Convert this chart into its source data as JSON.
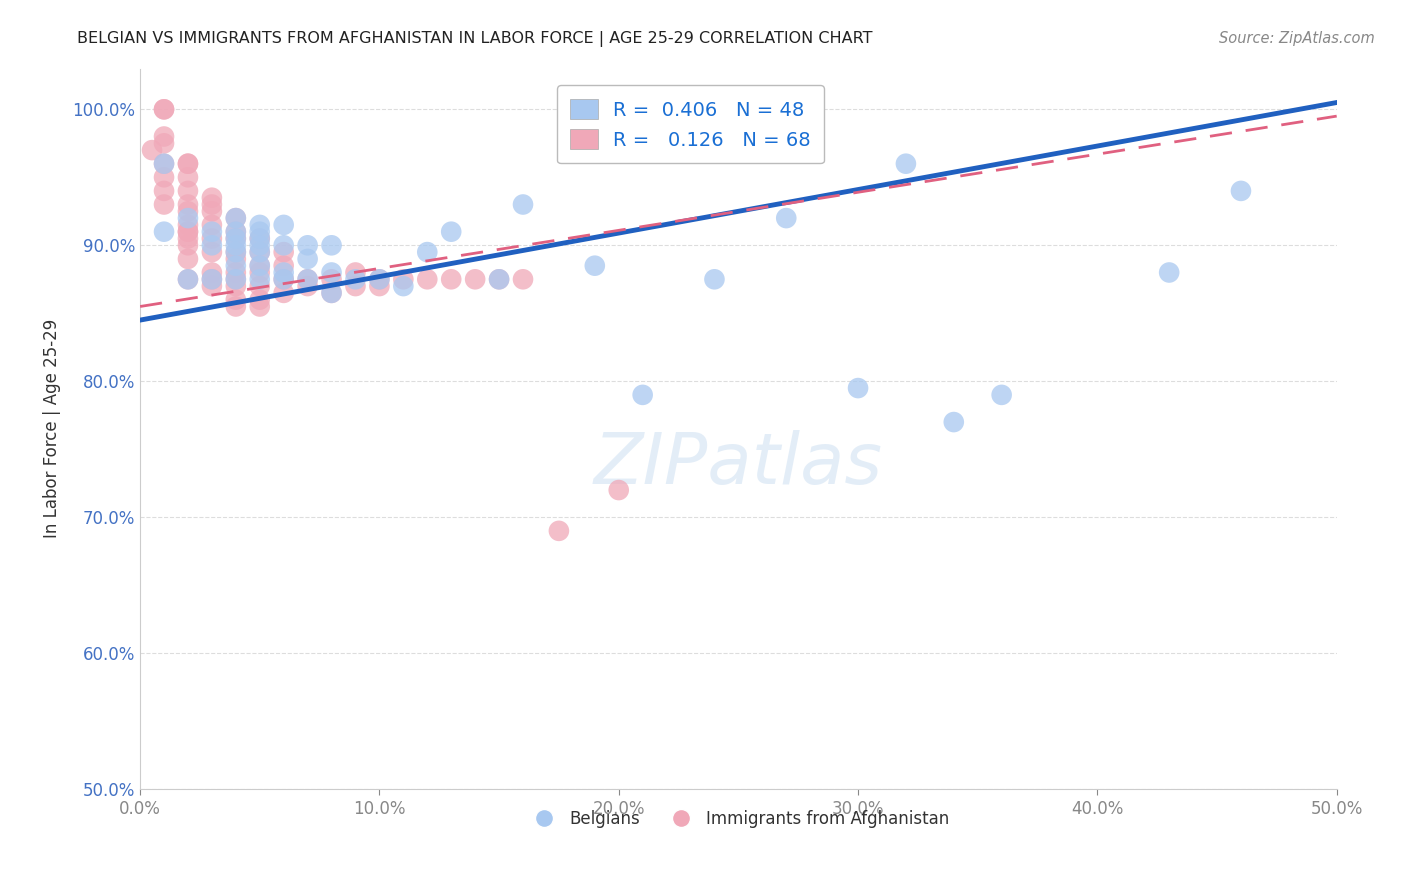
{
  "title": "BELGIAN VS IMMIGRANTS FROM AFGHANISTAN IN LABOR FORCE | AGE 25-29 CORRELATION CHART",
  "source": "Source: ZipAtlas.com",
  "ylabel": "In Labor Force | Age 25-29",
  "xlabel": "",
  "xlim": [
    0.0,
    0.5
  ],
  "ylim": [
    0.5,
    1.03
  ],
  "xtick_vals": [
    0.0,
    0.1,
    0.2,
    0.3,
    0.4,
    0.5
  ],
  "ytick_vals": [
    0.5,
    0.6,
    0.7,
    0.8,
    0.9,
    1.0
  ],
  "legend_r_blue": "0.406",
  "legend_n_blue": "48",
  "legend_r_pink": "0.126",
  "legend_n_pink": "68",
  "blue_color": "#A8C8F0",
  "pink_color": "#F0A8B8",
  "blue_line_color": "#2060C0",
  "pink_line_color": "#E06080",
  "grid_color": "#DDDDDD",
  "blue_trend_x0": 0.0,
  "blue_trend_y0": 0.845,
  "blue_trend_x1": 0.5,
  "blue_trend_y1": 1.005,
  "pink_trend_x0": 0.0,
  "pink_trend_y0": 0.855,
  "pink_trend_x1": 0.5,
  "pink_trend_y1": 0.995,
  "belgians_x": [
    0.01,
    0.01,
    0.02,
    0.02,
    0.03,
    0.03,
    0.03,
    0.04,
    0.04,
    0.04,
    0.04,
    0.04,
    0.04,
    0.04,
    0.05,
    0.05,
    0.05,
    0.05,
    0.05,
    0.05,
    0.05,
    0.06,
    0.06,
    0.06,
    0.06,
    0.07,
    0.07,
    0.07,
    0.08,
    0.08,
    0.08,
    0.09,
    0.1,
    0.11,
    0.12,
    0.13,
    0.15,
    0.16,
    0.19,
    0.21,
    0.24,
    0.27,
    0.3,
    0.32,
    0.34,
    0.36,
    0.43,
    0.46
  ],
  "belgians_y": [
    0.91,
    0.96,
    0.875,
    0.92,
    0.875,
    0.9,
    0.91,
    0.875,
    0.885,
    0.895,
    0.9,
    0.905,
    0.91,
    0.92,
    0.875,
    0.885,
    0.895,
    0.9,
    0.905,
    0.91,
    0.915,
    0.875,
    0.88,
    0.9,
    0.915,
    0.875,
    0.89,
    0.9,
    0.865,
    0.88,
    0.9,
    0.875,
    0.875,
    0.87,
    0.895,
    0.91,
    0.875,
    0.93,
    0.885,
    0.79,
    0.875,
    0.92,
    0.795,
    0.96,
    0.77,
    0.79,
    0.88,
    0.94
  ],
  "afghan_x": [
    0.005,
    0.01,
    0.01,
    0.01,
    0.01,
    0.01,
    0.01,
    0.01,
    0.01,
    0.02,
    0.02,
    0.02,
    0.02,
    0.02,
    0.02,
    0.02,
    0.02,
    0.02,
    0.02,
    0.02,
    0.02,
    0.02,
    0.03,
    0.03,
    0.03,
    0.03,
    0.03,
    0.03,
    0.03,
    0.03,
    0.03,
    0.04,
    0.04,
    0.04,
    0.04,
    0.04,
    0.04,
    0.04,
    0.04,
    0.04,
    0.04,
    0.05,
    0.05,
    0.05,
    0.05,
    0.05,
    0.05,
    0.05,
    0.06,
    0.06,
    0.06,
    0.06,
    0.07,
    0.07,
    0.08,
    0.08,
    0.09,
    0.09,
    0.1,
    0.1,
    0.11,
    0.12,
    0.13,
    0.14,
    0.15,
    0.16,
    0.175,
    0.2
  ],
  "afghan_y": [
    0.97,
    1.0,
    1.0,
    0.98,
    0.975,
    0.96,
    0.95,
    0.94,
    0.93,
    0.96,
    0.96,
    0.95,
    0.94,
    0.93,
    0.925,
    0.915,
    0.91,
    0.91,
    0.905,
    0.9,
    0.89,
    0.875,
    0.935,
    0.93,
    0.925,
    0.915,
    0.905,
    0.895,
    0.88,
    0.875,
    0.87,
    0.92,
    0.91,
    0.905,
    0.895,
    0.89,
    0.88,
    0.875,
    0.87,
    0.86,
    0.855,
    0.905,
    0.895,
    0.885,
    0.88,
    0.87,
    0.86,
    0.855,
    0.895,
    0.885,
    0.875,
    0.865,
    0.875,
    0.87,
    0.875,
    0.865,
    0.88,
    0.87,
    0.875,
    0.87,
    0.875,
    0.875,
    0.875,
    0.875,
    0.875,
    0.875,
    0.69,
    0.72
  ]
}
